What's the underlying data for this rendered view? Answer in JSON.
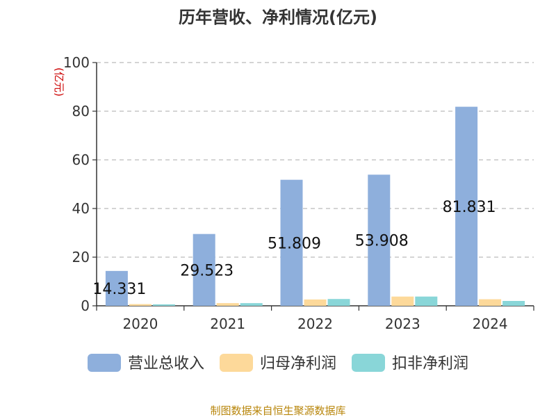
{
  "chart_data": {
    "type": "bar",
    "title": "历年营收、净利情况(亿元)",
    "ylabel": "(亿元)",
    "xlabel": "",
    "categories": [
      "2020",
      "2021",
      "2022",
      "2023",
      "2024"
    ],
    "ylim": [
      0,
      100
    ],
    "yticks": [
      0,
      20,
      40,
      60,
      80,
      100
    ],
    "grid": true,
    "legend_position": "bottom",
    "series": [
      {
        "name": "营业总收入",
        "color": "#8EAFDC",
        "values": [
          14.331,
          29.523,
          51.809,
          53.908,
          81.831
        ],
        "labels": [
          "14.331",
          "29.523",
          "51.809",
          "53.908",
          "81.831"
        ]
      },
      {
        "name": "归母净利润",
        "color": "#FDD99A",
        "values": [
          0.7,
          1.1,
          2.6,
          3.8,
          2.7
        ]
      },
      {
        "name": "扣非净利润",
        "color": "#89D6D8",
        "values": [
          0.6,
          1.1,
          2.8,
          3.8,
          2.0
        ]
      }
    ]
  },
  "footer": {
    "source": "制图数据来自恒生聚源数据库"
  },
  "colors": {
    "title": "#333333",
    "axis": "#333333",
    "ylabel": "#CC0000",
    "grid": "#BBBBBB",
    "source": "#B8860B"
  }
}
